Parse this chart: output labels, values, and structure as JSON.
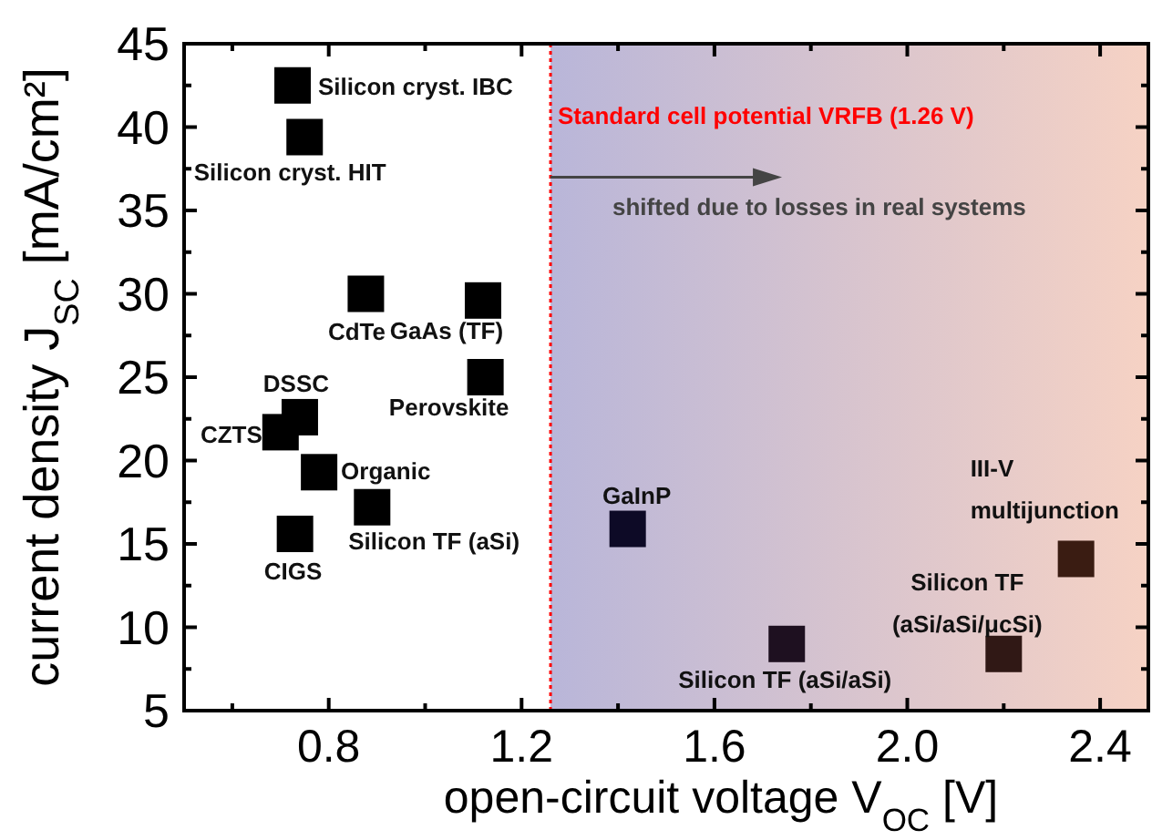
{
  "chart_data": {
    "type": "scatter",
    "xlabel": "open-circuit voltage V$_{OC}$ [V]",
    "ylabel": "current density J$_{SC}$ [mA/cm²]",
    "x": [
      0.725,
      0.75,
      0.877,
      1.12,
      1.125,
      0.74,
      0.7,
      0.78,
      0.89,
      0.73,
      1.42,
      1.75,
      2.2,
      2.35
    ],
    "series": [
      {
        "values": [
          42.5,
          39.4,
          30.0,
          29.6,
          25.0,
          22.6,
          21.7,
          19.3,
          17.2,
          15.6,
          15.9,
          9.0,
          8.4,
          14.1
        ],
        "colors": [
          "#000000",
          "#000000",
          "#000000",
          "#000000",
          "#000000",
          "#000000",
          "#000000",
          "#000000",
          "#000000",
          "#000000",
          "#0d0a26",
          "#1e1020",
          "#301815",
          "#3a1c12"
        ]
      }
    ],
    "marker": "square",
    "xlim": [
      0.5,
      2.5
    ],
    "ylim": [
      5,
      45
    ],
    "xticks": [
      {
        "value": 0.6,
        "label": null
      },
      0.8,
      {
        "value": 1.0,
        "label": null
      },
      1.2,
      {
        "value": 1.4,
        "label": null
      },
      1.6,
      {
        "value": 1.8,
        "label": null
      },
      {
        "value": 2,
        "label": "2.0"
      },
      {
        "value": 2.2,
        "label": null
      },
      2.4
    ],
    "yticks": [
      5,
      {
        "value": 7.5,
        "label": null
      },
      10,
      {
        "value": 12.5,
        "label": null
      },
      15,
      {
        "value": 17.5,
        "label": null
      },
      20,
      {
        "value": 22.5,
        "label": null
      },
      25,
      {
        "value": 27.5,
        "label": null
      },
      30,
      {
        "value": 32.5,
        "label": null
      },
      35,
      {
        "value": 37.5,
        "label": null
      },
      40,
      {
        "value": 42.5,
        "label": null
      },
      45
    ],
    "ref_lines": [
      {
        "axis": "x",
        "value": 1.26,
        "label": "Standard cell potential VRFB (1.26 V)",
        "color": "#ff0000",
        "line_style": "dotted"
      }
    ],
    "bands": [
      {
        "axis": "x",
        "from": 1.26,
        "to": 2.5,
        "color": "#b9b6d9"
      }
    ],
    "annotations": [
      {
        "text": "Silicon cryst. IBC",
        "x": 0.725,
        "y": 42.5
      },
      {
        "text": "Silicon cryst. HIT",
        "x": 0.75,
        "y": 39.4
      },
      {
        "text": "CdTe",
        "x": 0.877,
        "y": 30.0
      },
      {
        "text": "GaAs (TF)",
        "x": 1.12,
        "y": 29.6
      },
      {
        "text": "Perovskite",
        "x": 1.125,
        "y": 25.0
      },
      {
        "text": "DSSC",
        "x": 0.74,
        "y": 22.6
      },
      {
        "text": "CZTS",
        "x": 0.7,
        "y": 21.7
      },
      {
        "text": "Organic",
        "x": 0.78,
        "y": 19.3
      },
      {
        "text": "Silicon TF (aSi)",
        "x": 0.89,
        "y": 17.2
      },
      {
        "text": "CIGS",
        "x": 0.73,
        "y": 15.6
      },
      {
        "text": "GaInP",
        "x": 1.42,
        "y": 15.9
      },
      {
        "text": "Silicon TF (aSi/aSi)",
        "x": 1.75,
        "y": 9.0
      },
      {
        "text": "Silicon TF\n(aSi/aSi/μcSi)",
        "x": 2.2,
        "y": 8.4
      },
      {
        "text": "III-V\nmultijunction",
        "x": 2.35,
        "y": 14.1
      },
      {
        "text": "shifted due to losses in real systems",
        "x": 1.26,
        "y": 37
      }
    ],
    "grid": false
  }
}
